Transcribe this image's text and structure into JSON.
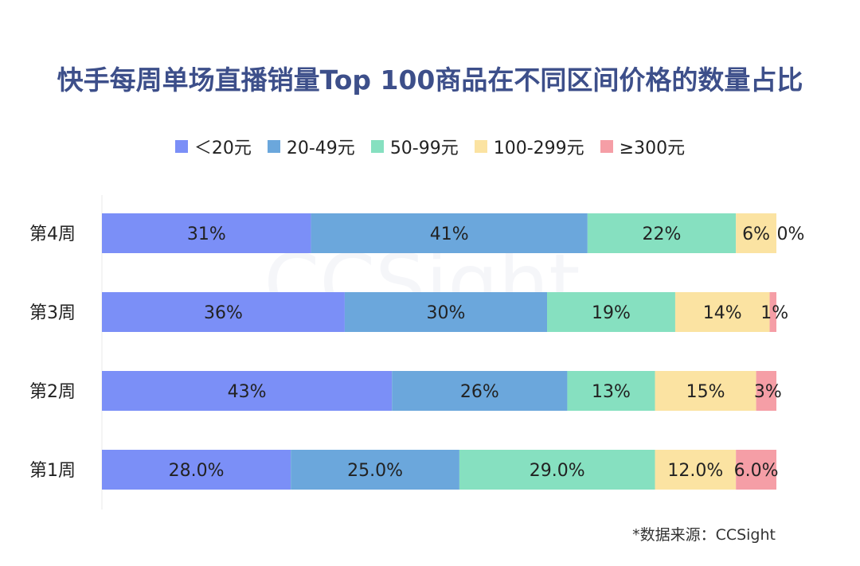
{
  "chart_data": {
    "type": "bar",
    "orientation": "horizontal",
    "stacked": true,
    "title": "快手每周单场直播销量Top 100商品在不同区间价格的数量占比",
    "categories": [
      "第4周",
      "第3周",
      "第2周",
      "第1周"
    ],
    "series": [
      {
        "name": "＜20元",
        "color": "#7b8ff7",
        "values": [
          31,
          36,
          43,
          28.0
        ],
        "labels": [
          "31%",
          "36%",
          "43%",
          "28.0%"
        ]
      },
      {
        "name": "20-49元",
        "color": "#6ba7dc",
        "values": [
          41,
          30,
          26,
          25.0
        ],
        "labels": [
          "41%",
          "30%",
          "26%",
          "25.0%"
        ]
      },
      {
        "name": "50-99元",
        "color": "#86e0c0",
        "values": [
          22,
          19,
          13,
          29.0
        ],
        "labels": [
          "22%",
          "19%",
          "13%",
          "29.0%"
        ]
      },
      {
        "name": "100-299元",
        "color": "#fbe3a2",
        "values": [
          6,
          14,
          15,
          12.0
        ],
        "labels": [
          "6%",
          "14%",
          "15%",
          "12.0%"
        ]
      },
      {
        "name": "≥300元",
        "color": "#f59ea6",
        "values": [
          0,
          1,
          3,
          6.0
        ],
        "labels": [
          "0%",
          "1%",
          "3%",
          "6.0%"
        ]
      }
    ],
    "xlim": [
      0,
      100
    ],
    "legend_position": "top",
    "grid": false
  },
  "source_note": "*数据来源：CCSight",
  "watermark_text": "CCSight"
}
